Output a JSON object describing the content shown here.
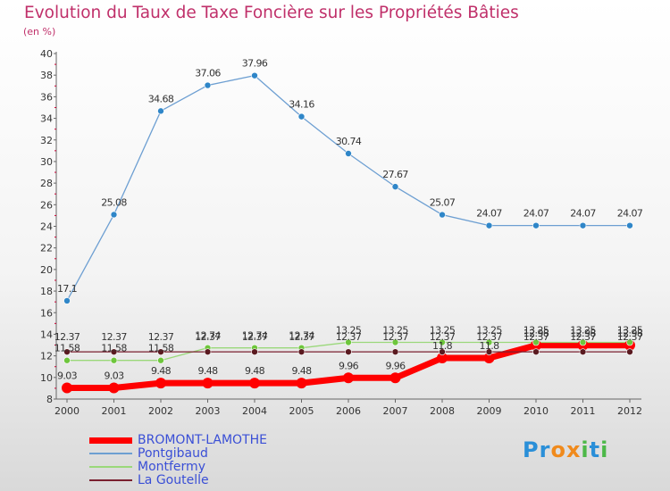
{
  "title": "Evolution du Taux de Taxe Foncière sur les Propriétés Bâties",
  "unit": "(en %)",
  "logo": {
    "text": "Proxiti",
    "letters": [
      "P",
      "r",
      "o",
      "x",
      "i",
      "t",
      "i"
    ],
    "colors": [
      "#2a8fd8",
      "#2a8fd8",
      "#f08a1c",
      "#f08a1c",
      "#4cb848",
      "#2a8fd8",
      "#4cb848"
    ]
  },
  "chart_data": {
    "type": "line",
    "x": [
      "2000",
      "2001",
      "2002",
      "2003",
      "2004",
      "2005",
      "2006",
      "2007",
      "2008",
      "2009",
      "2010",
      "2011",
      "2012"
    ],
    "ylim": [
      8,
      40
    ],
    "yticks": [
      8,
      10,
      12,
      14,
      16,
      18,
      20,
      22,
      24,
      26,
      28,
      30,
      32,
      34,
      36,
      38,
      40
    ],
    "grid": false,
    "series": [
      {
        "name": "BROMONT-LAMOTHE",
        "color": "#ff0000",
        "marker": "#ff0000",
        "width": 7,
        "values": [
          9.03,
          9.03,
          9.48,
          9.48,
          9.48,
          9.48,
          9.96,
          9.96,
          11.8,
          11.8,
          12.98,
          12.98,
          12.98
        ],
        "labels": [
          "9.03",
          "9.03",
          "9.48",
          "9.48",
          "9.48",
          "9.48",
          "9.96",
          "9.96",
          "11.8",
          "11.8",
          "12.98",
          "12.98",
          "12.98"
        ]
      },
      {
        "name": "Pontgibaud",
        "color": "#6d9fd2",
        "marker": "#2f86c8",
        "width": 1.3,
        "values": [
          17.1,
          25.08,
          34.68,
          37.06,
          37.96,
          34.16,
          30.74,
          27.67,
          25.07,
          24.07,
          24.07,
          24.07,
          24.07
        ],
        "labels": [
          "17.1",
          "25.08",
          "34.68",
          "37.06",
          "37.96",
          "34.16",
          "30.74",
          "27.67",
          "25.07",
          "24.07",
          "24.07",
          "24.07",
          "24.07"
        ]
      },
      {
        "name": "Montfermy",
        "color": "#9ad87a",
        "marker": "#6ec63c",
        "width": 1.3,
        "values": [
          11.58,
          11.58,
          11.58,
          12.74,
          12.74,
          12.74,
          13.25,
          13.25,
          13.25,
          13.25,
          13.25,
          13.25,
          13.25
        ],
        "labels": [
          "11.58",
          "11.58",
          "11.58",
          "12.74",
          "12.74",
          "12.74",
          "13.25",
          "13.25",
          "13.25",
          "13.25",
          "13.25",
          "13.25",
          "13.25"
        ]
      },
      {
        "name": "La Goutelle",
        "color": "#7a2030",
        "marker": "#5a1a20",
        "width": 1.3,
        "values": [
          12.37,
          12.37,
          12.37,
          12.37,
          12.37,
          12.37,
          12.37,
          12.37,
          12.37,
          12.37,
          12.37,
          12.37,
          12.37
        ],
        "labels": [
          "12.37",
          "12.37",
          "12.37",
          "12.37",
          "12.37",
          "12.37",
          "12.37",
          "12.37",
          "12.37",
          "12.37",
          "12.37",
          "12.37",
          "12.37"
        ]
      }
    ]
  }
}
